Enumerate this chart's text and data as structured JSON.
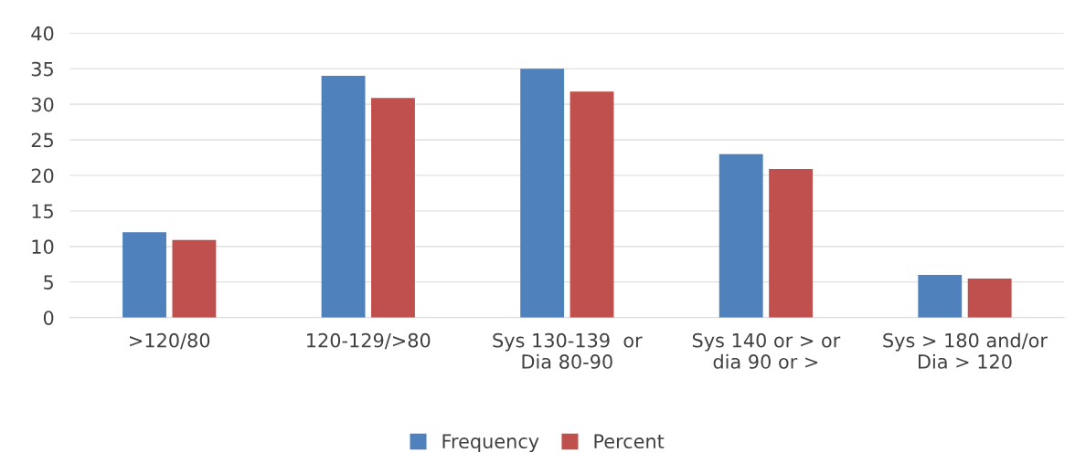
{
  "chart_data": {
    "type": "bar",
    "categories": [
      ">120/80",
      "120-129/>80",
      "Sys 130-139  or\nDia 80-90",
      "Sys 140 or > or\ndia 90 or >",
      "Sys > 180 and/or\nDia > 120"
    ],
    "series": [
      {
        "name": "Frequency",
        "color": "#4f81bd",
        "values": [
          12,
          34,
          35,
          23,
          6
        ]
      },
      {
        "name": "Percent",
        "color": "#c0504d",
        "values": [
          10.9,
          30.9,
          31.8,
          20.9,
          5.5
        ]
      }
    ],
    "ylim": [
      0,
      40
    ],
    "yticks": [
      0,
      5,
      10,
      15,
      20,
      25,
      30,
      35,
      40
    ],
    "grid": "y",
    "legend": "bottom"
  }
}
